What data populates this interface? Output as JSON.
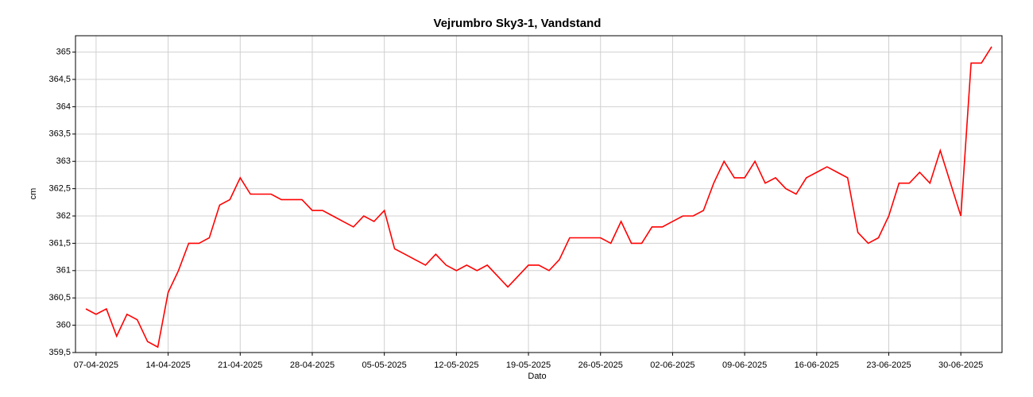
{
  "chart_data": {
    "type": "line",
    "title": "Vejrumbro Sky3-1, Vandstand",
    "xlabel": "Dato",
    "ylabel": "cm",
    "x": [
      "2025-04-06",
      "2025-04-07",
      "2025-04-08",
      "2025-04-09",
      "2025-04-10",
      "2025-04-11",
      "2025-04-12",
      "2025-04-13",
      "2025-04-14",
      "2025-04-15",
      "2025-04-16",
      "2025-04-17",
      "2025-04-18",
      "2025-04-19",
      "2025-04-20",
      "2025-04-21",
      "2025-04-22",
      "2025-04-23",
      "2025-04-24",
      "2025-04-25",
      "2025-04-26",
      "2025-04-27",
      "2025-04-28",
      "2025-04-29",
      "2025-04-30",
      "2025-05-01",
      "2025-05-02",
      "2025-05-03",
      "2025-05-04",
      "2025-05-05",
      "2025-05-06",
      "2025-05-07",
      "2025-05-08",
      "2025-05-09",
      "2025-05-10",
      "2025-05-11",
      "2025-05-12",
      "2025-05-13",
      "2025-05-14",
      "2025-05-15",
      "2025-05-16",
      "2025-05-17",
      "2025-05-18",
      "2025-05-19",
      "2025-05-20",
      "2025-05-21",
      "2025-05-22",
      "2025-05-23",
      "2025-05-24",
      "2025-05-25",
      "2025-05-26",
      "2025-05-27",
      "2025-05-28",
      "2025-05-29",
      "2025-05-30",
      "2025-05-31",
      "2025-06-01",
      "2025-06-02",
      "2025-06-03",
      "2025-06-04",
      "2025-06-05",
      "2025-06-06",
      "2025-06-07",
      "2025-06-08",
      "2025-06-09",
      "2025-06-10",
      "2025-06-11",
      "2025-06-12",
      "2025-06-13",
      "2025-06-14",
      "2025-06-15",
      "2025-06-16",
      "2025-06-17",
      "2025-06-18",
      "2025-06-19",
      "2025-06-20",
      "2025-06-21",
      "2025-06-22",
      "2025-06-23",
      "2025-06-24",
      "2025-06-25",
      "2025-06-26",
      "2025-06-27",
      "2025-06-28",
      "2025-06-29",
      "2025-06-30",
      "2025-07-01",
      "2025-07-02",
      "2025-07-03"
    ],
    "series": [
      {
        "name": "Vandstand",
        "color": "#ff0000",
        "values": [
          360.3,
          360.2,
          360.3,
          359.8,
          360.2,
          360.1,
          359.7,
          359.6,
          360.6,
          361.0,
          361.5,
          361.5,
          361.6,
          362.2,
          362.3,
          362.7,
          362.4,
          362.4,
          362.4,
          362.3,
          362.3,
          362.3,
          362.1,
          362.1,
          362.0,
          361.9,
          361.8,
          362.0,
          361.9,
          362.1,
          361.4,
          361.3,
          361.2,
          361.1,
          361.3,
          361.1,
          361.0,
          361.1,
          361.0,
          361.1,
          360.9,
          360.7,
          360.9,
          361.1,
          361.1,
          361.0,
          361.2,
          361.6,
          361.6,
          361.6,
          361.6,
          361.5,
          361.9,
          361.5,
          361.5,
          361.8,
          361.8,
          361.9,
          362.0,
          362.0,
          362.1,
          362.6,
          363.0,
          362.7,
          362.7,
          363.0,
          362.6,
          362.7,
          362.5,
          362.4,
          362.7,
          362.8,
          362.9,
          362.8,
          362.7,
          361.7,
          361.5,
          361.6,
          362.0,
          362.6,
          362.6,
          362.8,
          362.6,
          363.2,
          362.6,
          362.0,
          364.8,
          364.8,
          365.1
        ]
      }
    ],
    "xlim": [
      "2025-04-05",
      "2025-07-04"
    ],
    "xticks": [
      {
        "value": "2025-04-07",
        "label": "07-04-2025"
      },
      {
        "value": "2025-04-14",
        "label": "14-04-2025"
      },
      {
        "value": "2025-04-21",
        "label": "21-04-2025"
      },
      {
        "value": "2025-04-28",
        "label": "28-04-2025"
      },
      {
        "value": "2025-05-05",
        "label": "05-05-2025"
      },
      {
        "value": "2025-05-12",
        "label": "12-05-2025"
      },
      {
        "value": "2025-05-19",
        "label": "19-05-2025"
      },
      {
        "value": "2025-05-26",
        "label": "26-05-2025"
      },
      {
        "value": "2025-06-02",
        "label": "02-06-2025"
      },
      {
        "value": "2025-06-09",
        "label": "09-06-2025"
      },
      {
        "value": "2025-06-16",
        "label": "16-06-2025"
      },
      {
        "value": "2025-06-23",
        "label": "23-06-2025"
      },
      {
        "value": "2025-06-30",
        "label": "30-06-2025"
      }
    ],
    "ylim": [
      359.5,
      365.3
    ],
    "yticks": [
      {
        "value": 359.5,
        "label": "359,5"
      },
      360,
      {
        "value": 360.5,
        "label": "360,5"
      },
      361,
      {
        "value": 361.5,
        "label": "361,5"
      },
      362,
      {
        "value": 362.5,
        "label": "362,5"
      },
      363,
      {
        "value": 363.5,
        "label": "363,5"
      },
      364,
      {
        "value": 364.5,
        "label": "364,5"
      },
      365
    ],
    "grid": true
  }
}
